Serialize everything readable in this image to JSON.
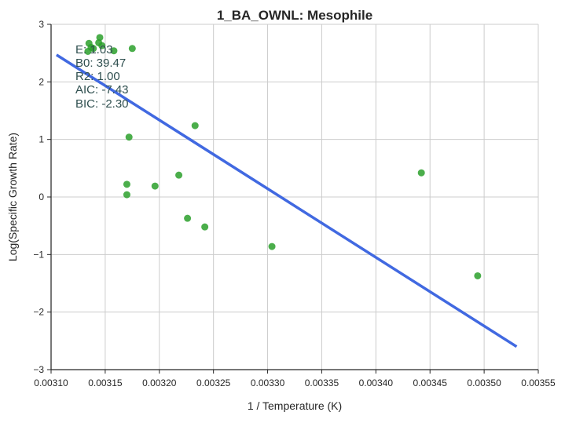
{
  "chart_data": {
    "type": "scatter",
    "title": "1_BA_OWNL: Mesophile",
    "xlabel": "1 / Temperature (K)",
    "ylabel": "Log(Specific Growth Rate)",
    "xlim": [
      0.0031,
      0.00355
    ],
    "ylim": [
      -3,
      3
    ],
    "xticks": [
      "0.00310",
      "0.00315",
      "0.00320",
      "0.00325",
      "0.00330",
      "0.00335",
      "0.00340",
      "0.00345",
      "0.00350",
      "0.00355"
    ],
    "yticks": [
      "−3",
      "−2",
      "−1",
      "0",
      "1",
      "2",
      "3"
    ],
    "xtick_values": [
      0.0031,
      0.00315,
      0.0032,
      0.00325,
      0.0033,
      0.00335,
      0.0034,
      0.00345,
      0.0035,
      0.00355
    ],
    "ytick_values": [
      -3,
      -2,
      -1,
      0,
      1,
      2,
      3
    ],
    "grid": true,
    "points": [
      {
        "x": 0.003135,
        "y": 2.67
      },
      {
        "x": 0.003137,
        "y": 2.6
      },
      {
        "x": 0.003134,
        "y": 2.53
      },
      {
        "x": 0.003139,
        "y": 2.58
      },
      {
        "x": 0.003145,
        "y": 2.77
      },
      {
        "x": 0.003144,
        "y": 2.68
      },
      {
        "x": 0.003147,
        "y": 2.63
      },
      {
        "x": 0.003158,
        "y": 2.54
      },
      {
        "x": 0.003175,
        "y": 2.58
      },
      {
        "x": 0.003172,
        "y": 1.04
      },
      {
        "x": 0.00317,
        "y": 0.22
      },
      {
        "x": 0.00317,
        "y": 0.04
      },
      {
        "x": 0.003196,
        "y": 0.19
      },
      {
        "x": 0.003218,
        "y": 0.38
      },
      {
        "x": 0.003226,
        "y": -0.37
      },
      {
        "x": 0.003233,
        "y": 1.24
      },
      {
        "x": 0.003242,
        "y": -0.52
      },
      {
        "x": 0.003304,
        "y": -0.86
      },
      {
        "x": 0.003442,
        "y": 0.42
      },
      {
        "x": 0.003494,
        "y": -1.37
      }
    ],
    "fit_line": {
      "x": [
        0.003105,
        0.00353
      ],
      "y": [
        2.47,
        -2.6
      ]
    },
    "annotation": [
      "E:  1.03",
      "B0:  39.47",
      "R2:  1.00",
      "AIC: -7.43",
      "BIC: -2.30"
    ],
    "colors": {
      "points": "#2ca02c",
      "line": "#4169e1",
      "grid": "#cccccc",
      "axis": "#262626",
      "annotation": "#2f4f4f"
    }
  }
}
